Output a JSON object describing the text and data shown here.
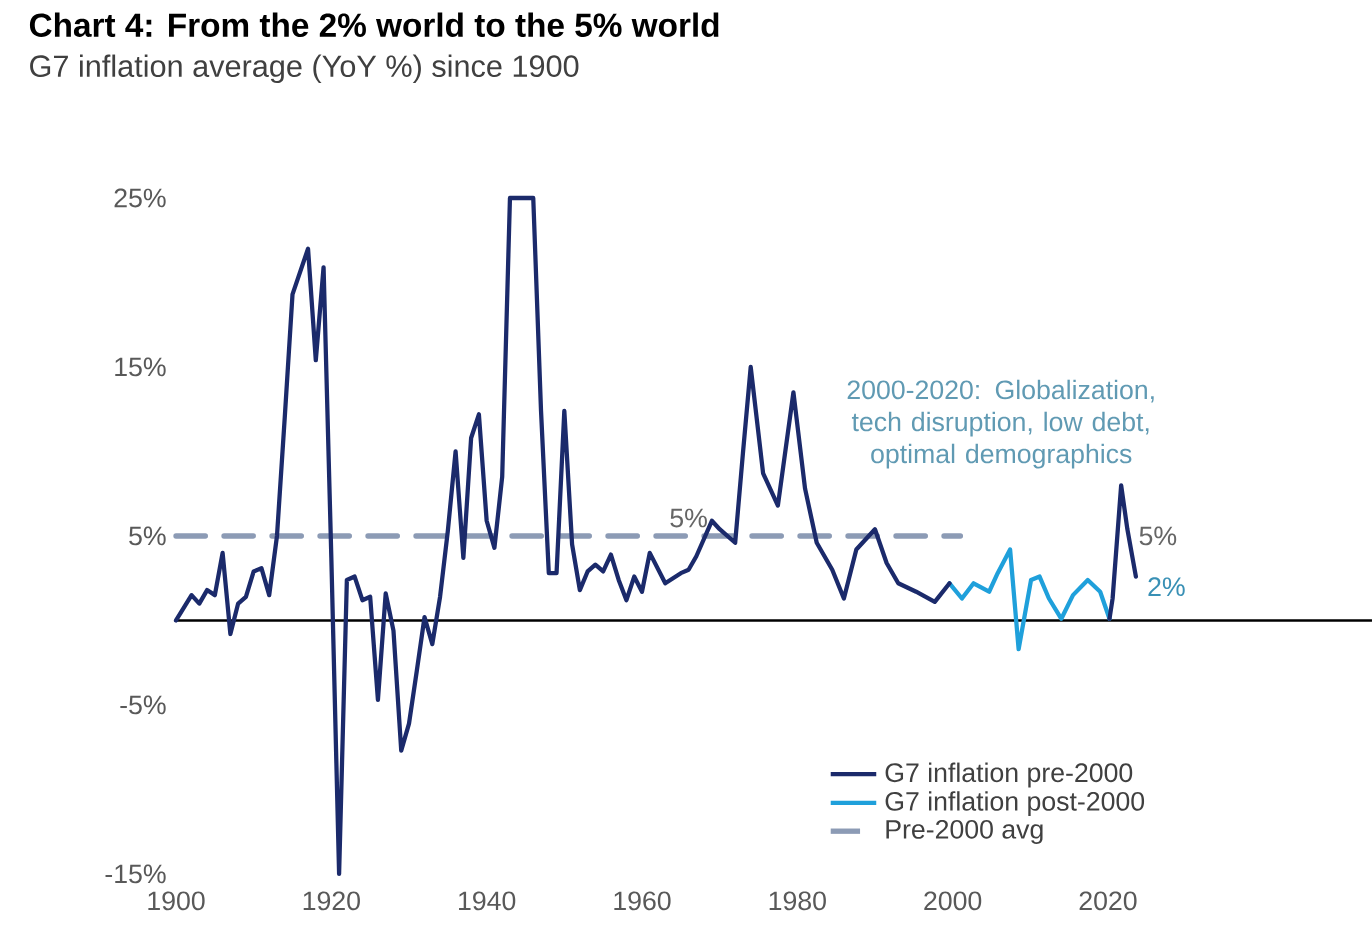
{
  "chart_data": {
    "type": "line",
    "title": "Chart 4: From the 2% world to the 5% world",
    "subtitle": "G7 inflation average (YoY %) since 1900",
    "xlim": [
      1900,
      2054
    ],
    "xticks": [
      1900,
      1920,
      1940,
      1960,
      1980,
      2000,
      2020
    ],
    "ylim": [
      -15,
      25
    ],
    "yticks": [
      {
        "value": -15,
        "label": "-15%"
      },
      {
        "value": -5,
        "label": "-5%"
      },
      {
        "value": 5,
        "label": "5%"
      },
      {
        "value": 15,
        "label": "15%"
      },
      {
        "value": 25,
        "label": "25%"
      }
    ],
    "series": [
      {
        "name": "G7 inflation pre-2000",
        "color": "#1b2a6b",
        "x": [
          1900,
          1902,
          1903,
          1904,
          1905,
          1906,
          1907,
          1908,
          1909,
          1910,
          1911,
          1912,
          1913,
          1914,
          1915,
          1917,
          1918,
          1919,
          1920,
          1921,
          1922,
          1923,
          1924,
          1925,
          1926,
          1927,
          1928,
          1929,
          1930,
          1931,
          1932,
          1933,
          1934,
          1935,
          1936,
          1937,
          1938,
          1939,
          1940,
          1941,
          1942,
          1943,
          1946,
          1947,
          1948,
          1949,
          1950,
          1951,
          1952,
          1953,
          1954,
          1955,
          1956,
          1957,
          1958,
          1959,
          1960,
          1961,
          1963,
          1965,
          1966,
          1967,
          1969,
          1970,
          1972,
          1973,
          1974,
          1975.6,
          1976,
          1977.5,
          1979.5,
          1981,
          1982.5,
          1984.5,
          1986,
          1987.6,
          1990,
          1991.5,
          1993,
          1995.3,
          1997.7,
          1999.6,
          2008,
          2020.2,
          2020.6,
          2021.7,
          2022.5,
          2023.6
        ],
        "values": [
          0,
          1.5,
          1,
          1.8,
          1.5,
          4,
          -0.8,
          1,
          1.4,
          2.9,
          3.1,
          1.5,
          5,
          12,
          19.3,
          22,
          15.4,
          20.9,
          3.7,
          -15,
          2.4,
          2.6,
          1.2,
          1.4,
          -4.7,
          1.6,
          -0.6,
          -7.7,
          -6.1,
          -3,
          0.2,
          -1.4,
          1.4,
          5.3,
          10,
          3.7,
          10.8,
          12.2,
          5.9,
          4.3,
          8.5,
          25,
          25,
          12.4,
          2.8,
          2.8,
          12.4,
          4.5,
          1.8,
          2.9,
          3.3,
          2.9,
          3.9,
          2.4,
          1.2,
          2.6,
          1.7,
          4,
          2.2,
          2.8,
          3,
          3.8,
          5.9,
          5.4,
          4.6,
          9.9,
          15,
          8.7,
          8.3,
          6.8,
          13.5,
          7.8,
          4.6,
          3,
          1.3,
          4.2,
          5.4,
          3.4,
          2.2,
          1.7,
          1.1,
          2.2,
          null,
          0.1,
          1.3,
          8,
          5.4,
          2.6
        ]
      },
      {
        "name": "G7 inflation post-2000",
        "color": "#1fa0db",
        "x": [
          1999.6,
          2001.2,
          2002.7,
          2004.7,
          2005.8,
          2007.4,
          2008.5,
          2010.1,
          2011.2,
          2012.4,
          2014,
          2015.5,
          2017.4,
          2019,
          2020.2
        ],
        "values": [
          2.2,
          1.3,
          2.2,
          1.7,
          2.8,
          4.2,
          -1.7,
          2.4,
          2.6,
          1.3,
          0.1,
          1.5,
          2.4,
          1.7,
          0.1
        ]
      },
      {
        "name": "Pre-2000 avg",
        "color": "#8c9bb5",
        "line_style": "dashed",
        "x": [
          1900,
          2001
        ],
        "values": [
          5,
          5
        ]
      }
    ],
    "ref_lines": [
      {
        "axis": "y",
        "value": 0,
        "color": "#000000"
      }
    ],
    "annotations": [
      {
        "text": "5%",
        "x": 1966,
        "y": 5
      },
      "2000-2020: Globalization, tech disruption, low debt, optimal demographics",
      {
        "text": "5%",
        "x": 2022.5,
        "y": 5
      },
      {
        "text": "2%",
        "x": 2023.6,
        "y": 2
      }
    ],
    "legend": "bottom right",
    "grid": false,
    "marker": "none"
  }
}
